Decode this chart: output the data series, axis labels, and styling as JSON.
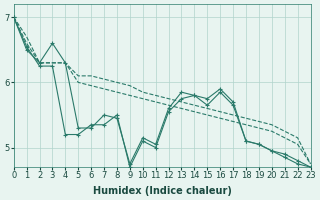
{
  "background_color": "#e8f4f0",
  "grid_color": "#b0d4cc",
  "line_color": "#2a7a6a",
  "xlabel": "Humidex (Indice chaleur)",
  "ylabel": "",
  "xlim": [
    0,
    23
  ],
  "ylim": [
    4.7,
    7.2
  ],
  "yticks": [
    5,
    6,
    7
  ],
  "xticks": [
    0,
    1,
    2,
    3,
    4,
    5,
    6,
    7,
    8,
    9,
    10,
    11,
    12,
    13,
    14,
    15,
    16,
    17,
    18,
    19,
    20,
    21,
    22,
    23
  ],
  "series": [
    [
      7.0,
      6.7,
      6.3,
      6.3,
      6.3,
      6.1,
      6.1,
      6.05,
      6.0,
      5.95,
      5.85,
      5.8,
      5.75,
      5.7,
      5.65,
      5.6,
      5.55,
      5.5,
      5.45,
      5.4,
      5.35,
      5.25,
      5.15,
      4.75
    ],
    [
      7.0,
      6.6,
      6.3,
      6.3,
      6.3,
      6.0,
      5.95,
      5.9,
      5.85,
      5.8,
      5.75,
      5.7,
      5.65,
      5.6,
      5.55,
      5.5,
      5.45,
      5.4,
      5.35,
      5.3,
      5.25,
      5.15,
      5.05,
      4.75
    ],
    [
      7.0,
      6.55,
      6.25,
      6.25,
      5.2,
      5.2,
      5.35,
      5.35,
      5.5,
      4.7,
      5.1,
      5.0,
      5.55,
      5.75,
      5.8,
      5.65,
      5.85,
      5.65,
      5.1,
      5.05,
      4.95,
      4.85,
      4.75,
      4.7
    ],
    [
      7.0,
      6.5,
      6.3,
      6.6,
      6.3,
      5.3,
      5.3,
      5.5,
      5.45,
      4.75,
      5.15,
      5.05,
      5.6,
      5.85,
      5.8,
      5.75,
      5.9,
      5.7,
      5.1,
      5.05,
      4.95,
      4.9,
      4.8,
      4.7
    ]
  ],
  "line_styles": [
    "-",
    "--",
    "-",
    "-."
  ],
  "marker": "+"
}
